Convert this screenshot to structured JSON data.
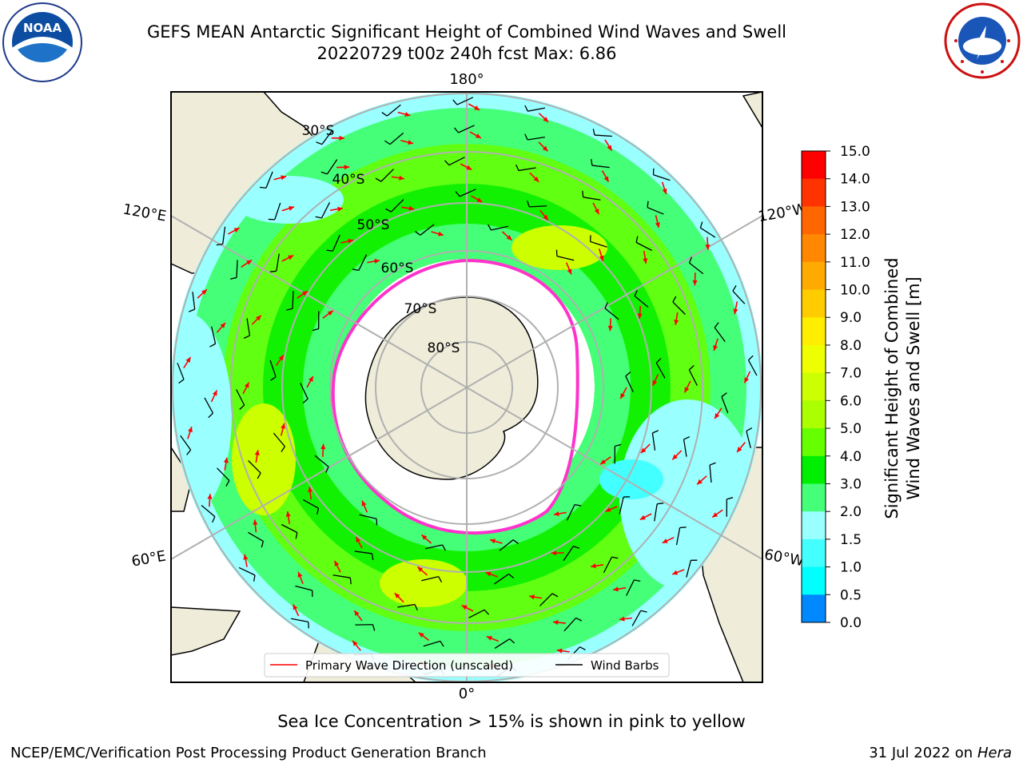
{
  "title_line1": "GEFS MEAN Antarctic Significant Height of Combined Wind Waves and Swell",
  "title_line2": "20220729 t00z 240h fcst   Max: 6.86",
  "logos": {
    "left": "NOAA",
    "right_icon": "national-weather-service-logo"
  },
  "map": {
    "longitude_labels": [
      "180°",
      "120°E",
      "120°W",
      "60°E",
      "60°W",
      "0°"
    ],
    "latitude_labels": [
      "30°S",
      "40°S",
      "50°S",
      "60°S",
      "70°S",
      "80°S"
    ],
    "legend": {
      "wave_label": "Primary Wave Direction (unscaled)",
      "barb_label": "Wind Barbs"
    }
  },
  "colorbar": {
    "label_line1": "Significant Height of Combined",
    "label_line2": "Wind Waves and Swell [m]",
    "ticks": [
      "15.0",
      "14.0",
      "13.0",
      "12.0",
      "11.0",
      "10.0",
      "9.0",
      "8.0",
      "7.0",
      "6.0",
      "5.0",
      "4.0",
      "3.0",
      "2.0",
      "1.5",
      "1.0",
      "0.5",
      "0.0"
    ],
    "colors": [
      "#ff0000",
      "#ff3300",
      "#ff6600",
      "#ff8800",
      "#ffaa00",
      "#ffcc00",
      "#ffee00",
      "#eeff00",
      "#ccff00",
      "#aaff00",
      "#66ff00",
      "#00ee00",
      "#44ff77",
      "#99ffff",
      "#44ffff",
      "#00ffff",
      "#0088ff",
      "#0000ff"
    ]
  },
  "note": "Sea Ice Concentration > 15% is shown in pink to yellow",
  "footer_left": "NCEP/EMC/Verification Post Processing Product Generation Branch",
  "footer_right_date": "31 Jul 2022 on ",
  "footer_right_machine": "Hera"
}
